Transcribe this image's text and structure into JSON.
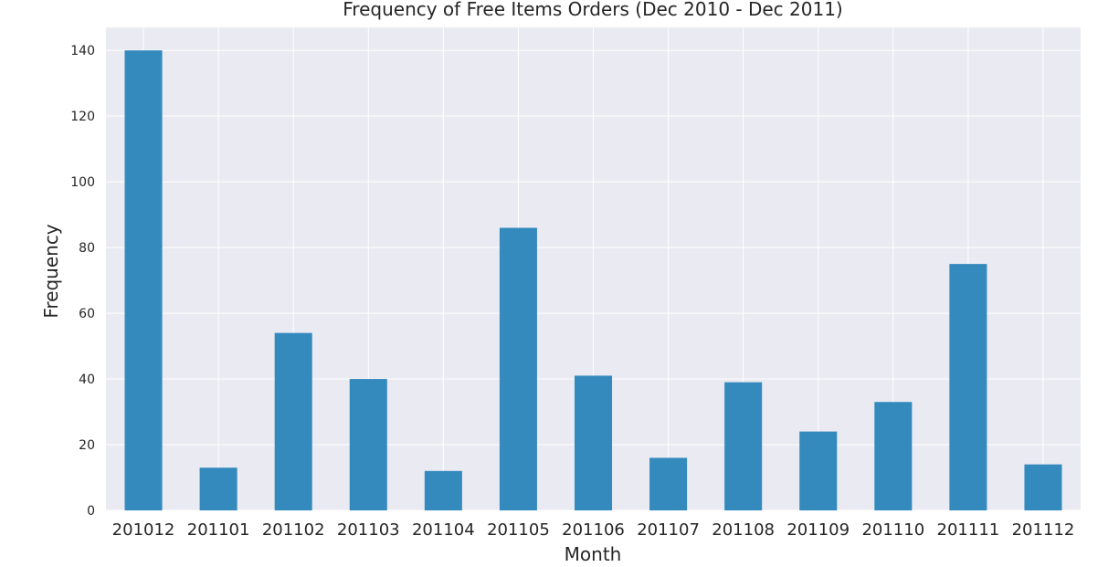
{
  "chart_data": {
    "type": "bar",
    "title": "Frequency of Free Items Orders (Dec 2010 - Dec 2011)",
    "xlabel": "Month",
    "ylabel": "Frequency",
    "categories": [
      "201012",
      "201101",
      "201102",
      "201103",
      "201104",
      "201105",
      "201106",
      "201107",
      "201108",
      "201109",
      "201110",
      "201111",
      "201112"
    ],
    "values": [
      140,
      13,
      54,
      40,
      12,
      86,
      41,
      16,
      39,
      24,
      33,
      75,
      14
    ],
    "ylim": [
      0,
      147
    ],
    "yticks": [
      0,
      20,
      40,
      60,
      80,
      100,
      120,
      140
    ],
    "grid": true,
    "colors": {
      "bar": "#348abd",
      "plot_background": "#eaeaf2",
      "grid": "#ffffff"
    }
  }
}
